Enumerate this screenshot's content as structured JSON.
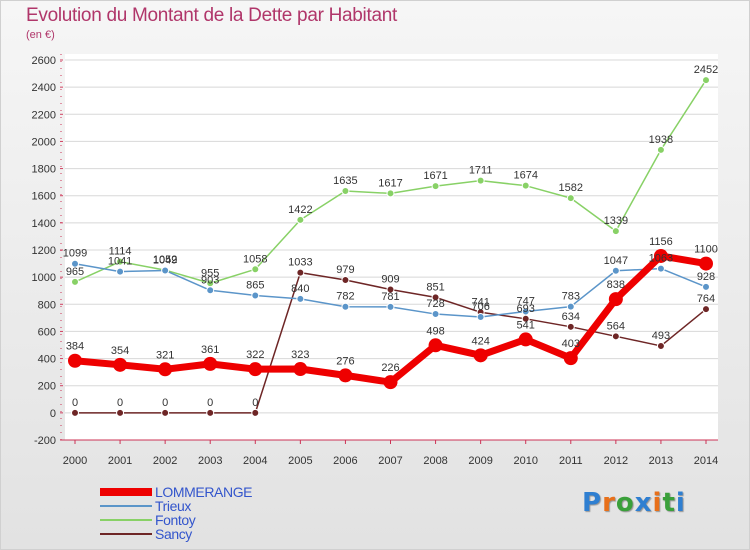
{
  "title": "Evolution du Montant de la Dette par Habitant",
  "unit_label": "(en €)",
  "logo": {
    "letters": [
      "P",
      "r",
      "o",
      "x",
      "i",
      "t",
      "i"
    ],
    "colors": [
      "#2f7fd1",
      "#e8701a",
      "#3aa03a",
      "#2f7fd1",
      "#e8701a",
      "#3aa03a",
      "#2f7fd1"
    ]
  },
  "chart_data": {
    "type": "line",
    "x": [
      2000,
      2001,
      2002,
      2003,
      2004,
      2005,
      2006,
      2007,
      2008,
      2009,
      2010,
      2011,
      2012,
      2013,
      2014
    ],
    "ylim": [
      -200,
      2600
    ],
    "yticks": [
      -200,
      0,
      200,
      400,
      600,
      800,
      1000,
      1200,
      1400,
      1600,
      1800,
      2000,
      2200,
      2400,
      2600
    ],
    "grid": true,
    "legend_position": "bottom-left",
    "series": [
      {
        "name": "Sancy",
        "color": "#6e2626",
        "values": [
          0,
          0,
          0,
          0,
          0,
          1033,
          979,
          909,
          851,
          741,
          693,
          634,
          564,
          493,
          764
        ]
      },
      {
        "name": "Fontoy",
        "color": "#88d166",
        "values": [
          965,
          1114,
          1052,
          955,
          1058,
          1422,
          1635,
          1617,
          1671,
          1711,
          1674,
          1582,
          1339,
          1938,
          2452
        ]
      },
      {
        "name": "Trieux",
        "color": "#5b95c9",
        "values": [
          1099,
          1041,
          1049,
          903,
          865,
          840,
          782,
          781,
          728,
          706,
          747,
          783,
          1047,
          1063,
          928
        ]
      },
      {
        "name": "LOMMERANGE",
        "color": "#ee0000",
        "values": [
          384,
          354,
          321,
          361,
          322,
          323,
          276,
          226,
          498,
          424,
          541,
          403,
          838,
          1156,
          1100
        ]
      }
    ]
  }
}
